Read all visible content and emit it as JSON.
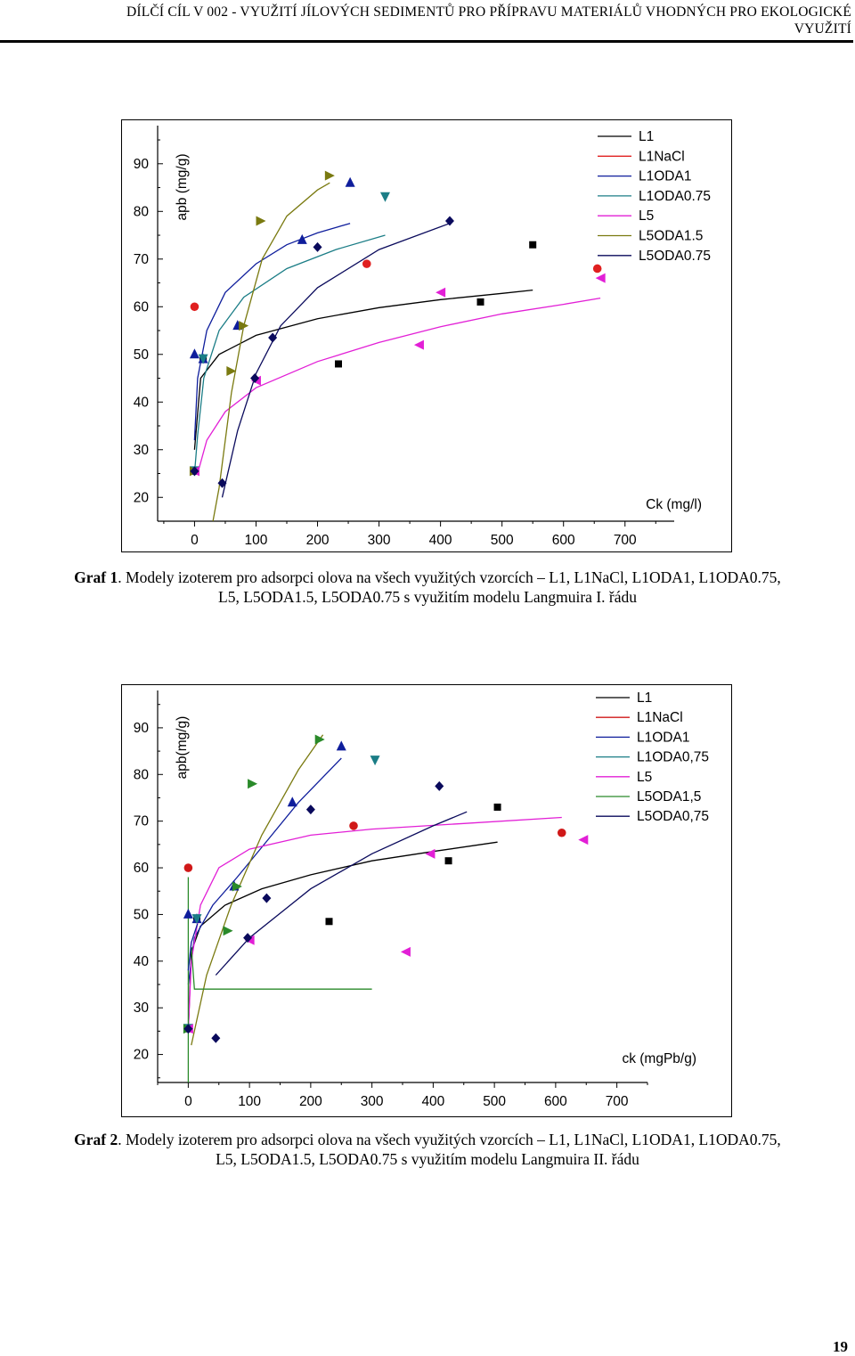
{
  "header": {
    "line1": "DÍLČÍ CÍL V 002 - VYUŽITÍ JÍLOVÝCH SEDIMENTŮ PRO PŘÍPRAVU MATERIÁLŮ VHODNÝCH PRO EKOLOGICKÉ",
    "line2": "VYUŽITÍ"
  },
  "captions": [
    {
      "label": "Graf 1",
      "text": ". Modely izoterem pro adsorpci olova na všech využitých vzorcích – L1, L1NaCl, L1ODA1, L1ODA0.75,",
      "line2": "L5, L5ODA1.5, L5ODA0.75 s využitím modelu Langmuira I. řádu"
    },
    {
      "label": "Graf 2",
      "text": ". Modely izoterem pro adsorpci olova na všech využitých vzorcích – L1, L1NaCl, L1ODA1, L1ODA0.75,",
      "line2": "L5, L5ODA1.5, L5ODA0.75 s využitím modelu Langmuira II. řádu"
    }
  ],
  "page_number": "19",
  "chart_data": [
    {
      "type": "scatter",
      "title": "",
      "xlabel": "Ck (mg/l)",
      "ylabel": "apb (mg/g)",
      "xlim": [
        -60,
        780
      ],
      "ylim": [
        15,
        98
      ],
      "xticks": [
        "0",
        "100",
        "200",
        "300",
        "400",
        "500",
        "600",
        "700"
      ],
      "yticks": [
        "20",
        "30",
        "40",
        "50",
        "60",
        "70",
        "80",
        "90"
      ],
      "legend_position": "top-right",
      "series": [
        {
          "name": "L1",
          "color": "#000000",
          "marker": "square",
          "points": [
            [
              0,
              25.5
            ],
            [
              14,
              49
            ],
            [
              234,
              48
            ],
            [
              465,
              61
            ],
            [
              550,
              73
            ]
          ],
          "curve": [
            [
              0,
              30
            ],
            [
              10,
              45
            ],
            [
              40,
              50
            ],
            [
              100,
              54
            ],
            [
              200,
              57.5
            ],
            [
              300,
              59.8
            ],
            [
              400,
              61.5
            ],
            [
              500,
              62.8
            ],
            [
              550,
              63.5
            ]
          ]
        },
        {
          "name": "L1NaCl",
          "color": "#e02020",
          "marker": "circle",
          "points": [
            [
              0,
              60
            ],
            [
              280,
              69
            ],
            [
              655,
              68
            ]
          ],
          "curve": []
        },
        {
          "name": "L1ODA1",
          "color": "#0f1e9c",
          "marker": "triangle-up",
          "points": [
            [
              0,
              50
            ],
            [
              14,
              49
            ],
            [
              70,
              56
            ],
            [
              175,
              74
            ],
            [
              253,
              86
            ]
          ],
          "curve": [
            [
              0,
              32
            ],
            [
              5,
              45
            ],
            [
              20,
              55
            ],
            [
              50,
              63
            ],
            [
              100,
              69
            ],
            [
              150,
              73
            ],
            [
              200,
              75.5
            ],
            [
              253,
              77.5
            ]
          ]
        },
        {
          "name": "L1ODA0.75",
          "color": "#1b7d86",
          "marker": "triangle-down",
          "points": [
            [
              0,
              25.5
            ],
            [
              14,
              49
            ],
            [
              310,
              83
            ]
          ],
          "curve": [
            [
              0,
              25
            ],
            [
              5,
              33
            ],
            [
              15,
              45
            ],
            [
              40,
              55
            ],
            [
              80,
              62
            ],
            [
              150,
              68
            ],
            [
              230,
              72
            ],
            [
              310,
              75
            ]
          ]
        },
        {
          "name": "L5",
          "color": "#e21fd6",
          "marker": "triangle-left",
          "points": [
            [
              0,
              25.5
            ],
            [
              100,
              44.5
            ],
            [
              365,
              52
            ],
            [
              400,
              63
            ],
            [
              660,
              66
            ]
          ],
          "curve": [
            [
              5,
              25
            ],
            [
              20,
              32
            ],
            [
              50,
              38
            ],
            [
              100,
              43
            ],
            [
              200,
              48.5
            ],
            [
              300,
              52.5
            ],
            [
              400,
              55.8
            ],
            [
              500,
              58.5
            ],
            [
              600,
              60.5
            ],
            [
              660,
              61.8
            ]
          ]
        },
        {
          "name": "L5ODA1.5",
          "color": "#7a7a10",
          "marker": "triangle-right",
          "points": [
            [
              0,
              25.5
            ],
            [
              60,
              46.5
            ],
            [
              80,
              56
            ],
            [
              108,
              78
            ],
            [
              220,
              87.5
            ]
          ],
          "curve": [
            [
              30,
              15
            ],
            [
              40,
              22
            ],
            [
              60,
              42
            ],
            [
              80,
              56
            ],
            [
              110,
              70
            ],
            [
              150,
              79
            ],
            [
              200,
              84.5
            ],
            [
              220,
              86
            ]
          ]
        },
        {
          "name": "L5ODA0.75",
          "color": "#0a0a5c",
          "marker": "diamond",
          "points": [
            [
              45,
              23
            ],
            [
              98,
              45
            ],
            [
              127,
              53.5
            ],
            [
              200,
              72.5
            ],
            [
              415,
              78
            ],
            [
              0,
              25.5
            ]
          ],
          "curve": [
            [
              45,
              20
            ],
            [
              70,
              34
            ],
            [
              100,
              46
            ],
            [
              140,
              56
            ],
            [
              200,
              64
            ],
            [
              300,
              72
            ],
            [
              415,
              77.5
            ]
          ]
        }
      ]
    },
    {
      "type": "scatter",
      "title": "",
      "xlabel": "ck (mgPb/g)",
      "ylabel": "apb(mg/g)",
      "xlim": [
        -50,
        750
      ],
      "ylim": [
        14,
        98
      ],
      "xticks": [
        "0",
        "100",
        "200",
        "300",
        "400",
        "500",
        "600",
        "700"
      ],
      "yticks": [
        "20",
        "30",
        "40",
        "50",
        "60",
        "70",
        "80",
        "90"
      ],
      "legend_position": "top-right",
      "series": [
        {
          "name": "L1",
          "color": "#000000",
          "marker": "square",
          "points": [
            [
              0,
              25.5
            ],
            [
              14,
              49
            ],
            [
              230,
              48.5
            ],
            [
              425,
              61.5
            ],
            [
              505,
              73
            ]
          ],
          "curve": [
            [
              0,
              25
            ],
            [
              5,
              42
            ],
            [
              20,
              47.5
            ],
            [
              60,
              52
            ],
            [
              120,
              55.5
            ],
            [
              200,
              58.5
            ],
            [
              300,
              61.5
            ],
            [
              400,
              63.5
            ],
            [
              505,
              65.5
            ]
          ]
        },
        {
          "name": "L1NaCl",
          "color": "#d01818",
          "marker": "circle",
          "points": [
            [
              0,
              60
            ],
            [
              270,
              69
            ],
            [
              610,
              67.5
            ]
          ],
          "curve": []
        },
        {
          "name": "L1ODA1",
          "color": "#0f1e9c",
          "marker": "triangle-up",
          "points": [
            [
              0,
              50
            ],
            [
              14,
              49
            ],
            [
              75,
              56
            ],
            [
              170,
              74
            ],
            [
              250,
              86
            ]
          ],
          "curve": [
            [
              0,
              35
            ],
            [
              10,
              45
            ],
            [
              40,
              52
            ],
            [
              80,
              58
            ],
            [
              130,
              66
            ],
            [
              180,
              74
            ],
            [
              250,
              83.5
            ]
          ]
        },
        {
          "name": "L1ODA0,75",
          "color": "#1b7d86",
          "marker": "triangle-down",
          "points": [
            [
              0,
              25.5
            ],
            [
              14,
              49
            ],
            [
              305,
              83
            ]
          ],
          "curve": []
        },
        {
          "name": "L5",
          "color": "#e21fd6",
          "marker": "triangle-left",
          "points": [
            [
              0,
              25.5
            ],
            [
              100,
              44.5
            ],
            [
              355,
              42
            ],
            [
              395,
              63
            ],
            [
              645,
              66
            ]
          ],
          "curve": [
            [
              0,
              25
            ],
            [
              5,
              40
            ],
            [
              20,
              52
            ],
            [
              50,
              60
            ],
            [
              100,
              64
            ],
            [
              200,
              67
            ],
            [
              300,
              68.3
            ],
            [
              450,
              69.5
            ],
            [
              610,
              70.8
            ]
          ]
        },
        {
          "name": "L5ODA1,5",
          "color": "#2a8a2a",
          "marker": "triangle-right",
          "points": [
            [
              0,
              25.5
            ],
            [
              65,
              46.5
            ],
            [
              80,
              56
            ],
            [
              105,
              78
            ],
            [
              215,
              87.5
            ]
          ],
          "curve": [
            [
              0,
              14
            ],
            [
              0,
              58
            ]
          ]
        },
        {
          "name": "L5ODA0,75",
          "color": "#0a0a5c",
          "marker": "diamond",
          "points": [
            [
              45,
              23.5
            ],
            [
              97,
              45
            ],
            [
              128,
              53.5
            ],
            [
              200,
              72.5
            ],
            [
              410,
              77.5
            ],
            [
              0,
              25.5
            ]
          ],
          "curve": [
            [
              45,
              37
            ],
            [
              100,
              45
            ],
            [
              200,
              55.5
            ],
            [
              300,
              63
            ],
            [
              400,
              69
            ],
            [
              455,
              72
            ]
          ]
        },
        {
          "name": "",
          "color": "#7a7a10",
          "marker": "none",
          "points": [],
          "curve": [
            [
              5,
              22
            ],
            [
              30,
              37
            ],
            [
              70,
              52
            ],
            [
              120,
              67
            ],
            [
              180,
              81
            ],
            [
              220,
              88.5
            ]
          ]
        },
        {
          "name": "",
          "color": "#2a8a2a",
          "marker": "none",
          "points": [],
          "curve": [
            [
              5,
              43
            ],
            [
              10,
              34
            ],
            [
              300,
              34
            ]
          ]
        },
        {
          "name": "",
          "color": "#0f1e9c",
          "marker": "none",
          "points": [],
          "curve": [
            [
              0,
              38
            ],
            [
              5,
              44
            ],
            [
              15,
              48
            ]
          ]
        }
      ]
    }
  ]
}
